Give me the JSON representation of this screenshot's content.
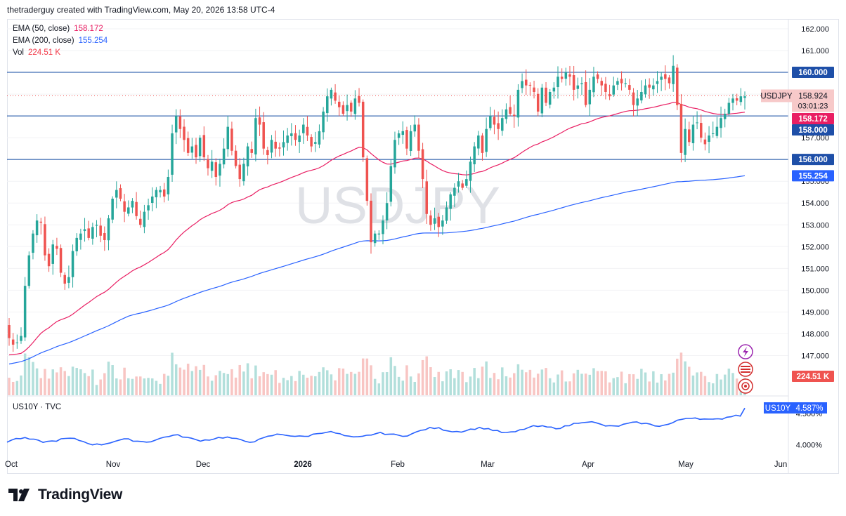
{
  "header": {
    "attribution": "thetraderguy created with TradingView.com, May 20, 2026 13:58 UTC-4"
  },
  "watermark": "USDJPY",
  "legend": {
    "ema50": {
      "label": "EMA (50, close)",
      "value": "158.172",
      "color": "#e91e63"
    },
    "ema200": {
      "label": "EMA (200, close)",
      "value": "155.254",
      "color": "#2962ff"
    },
    "vol": {
      "label": "Vol",
      "value": "224.51 K",
      "color": "#f23645"
    }
  },
  "price_axis": {
    "ticks": [
      "162.000",
      "161.000",
      "160.000",
      "159.000",
      "158.000",
      "157.000",
      "156.000",
      "155.000",
      "154.000",
      "153.000",
      "152.000",
      "151.000",
      "150.000",
      "149.000",
      "148.000",
      "147.000"
    ],
    "badges": {
      "level_160": "160.000",
      "symbol": "USDJPY",
      "last": "158.924",
      "countdown": "03:01:23",
      "ema50": "158.172",
      "level_158": "158.000",
      "level_156": "156.000",
      "ema200": "155.254",
      "volume": "224.51 K"
    }
  },
  "sub_pane": {
    "title": "US10Y · TVC",
    "symbol_badge": "US10Y",
    "value_badge": "4.587%",
    "ticks": [
      "4.500%",
      "4.000%"
    ]
  },
  "time_axis": [
    "Oct",
    "Nov",
    "Dec",
    "2026",
    "Feb",
    "Mar",
    "Apr",
    "May",
    "Jun"
  ],
  "footer": {
    "brand": "TradingView"
  },
  "colors": {
    "up": "#26a69a",
    "down": "#ef5350",
    "vol_up": "#b2dfdb",
    "vol_down": "#f8c5c3",
    "ema50": "#e91e63",
    "ema200": "#2962ff",
    "level": "#0d47a1",
    "us10y": "#2962ff"
  },
  "chart_data": {
    "type": "candlestick",
    "symbol": "USDJPY",
    "horizontal_levels": [
      160.0,
      158.0,
      156.0
    ],
    "last_price": 158.924,
    "ylim": [
      146.6,
      162.4
    ],
    "xlabels": [
      "Oct",
      "Nov",
      "Dec",
      "2026",
      "Feb",
      "Mar",
      "Apr",
      "May",
      "Jun"
    ],
    "closes": [
      147.8,
      147.5,
      147.6,
      147.9,
      150.2,
      151.6,
      152.6,
      153.2,
      153.1,
      151.6,
      151.1,
      152.1,
      151.9,
      150.8,
      150.3,
      150.6,
      151.8,
      152.4,
      152.6,
      152.8,
      152.4,
      152.9,
      153.0,
      152.5,
      152.3,
      153.3,
      154.2,
      154.6,
      154.2,
      153.6,
      153.8,
      154.1,
      153.4,
      153.0,
      153.6,
      153.9,
      154.3,
      154.6,
      154.6,
      154.3,
      155.2,
      157.2,
      158.0,
      157.4,
      156.9,
      156.3,
      156.6,
      156.1,
      157.0,
      156.1,
      155.6,
      155.9,
      155.2,
      155.8,
      156.5,
      157.5,
      156.4,
      155.7,
      155.1,
      155.8,
      156.6,
      156.3,
      157.9,
      157.6,
      156.5,
      156.2,
      156.9,
      156.5,
      156.5,
      156.8,
      157.1,
      157.2,
      156.9,
      157.1,
      157.6,
      157.1,
      156.6,
      156.8,
      157.3,
      158.2,
      158.9,
      159.2,
      158.7,
      158.4,
      158.1,
      158.5,
      158.2,
      158.8,
      158.6,
      156.1,
      154.1,
      152.2,
      152.6,
      152.6,
      153.2,
      154.0,
      155.7,
      156.9,
      157.2,
      157.3,
      156.5,
      157.3,
      157.6,
      156.4,
      155.1,
      153.5,
      153.0,
      153.3,
      152.9,
      153.2,
      153.8,
      154.4,
      154.7,
      155.0,
      154.7,
      155.1,
      155.9,
      156.6,
      157.1,
      156.3,
      157.4,
      158.0,
      157.6,
      157.4,
      157.9,
      158.3,
      158.1,
      158.0,
      159.2,
      159.6,
      159.4,
      159.4,
      159.1,
      158.2,
      159.3,
      158.6,
      159.1,
      159.3,
      159.8,
      159.7,
      160.0,
      159.8,
      159.2,
      159.4,
      159.5,
      158.5,
      159.2,
      159.8,
      159.7,
      159.4,
      159.1,
      158.9,
      159.4,
      159.6,
      159.5,
      159.5,
      159.2,
      158.5,
      158.8,
      159.1,
      159.4,
      159.3,
      159.4,
      159.6,
      159.8,
      159.7,
      159.5,
      160.3,
      158.5,
      156.3,
      157.4,
      156.8,
      157.6,
      157.7,
      157.0,
      156.7,
      157.1,
      157.2,
      157.5,
      157.9,
      158.1,
      158.6,
      158.8,
      158.7,
      158.9,
      158.9
    ],
    "ema50_endpoint": 158.172,
    "ema200_endpoint": 155.254,
    "volume_last": "224.51 K",
    "sub_series": {
      "name": "US10Y",
      "last": 4.587,
      "ylim": [
        3.85,
        4.72
      ],
      "ticks": [
        4.5,
        4.0
      ]
    }
  }
}
